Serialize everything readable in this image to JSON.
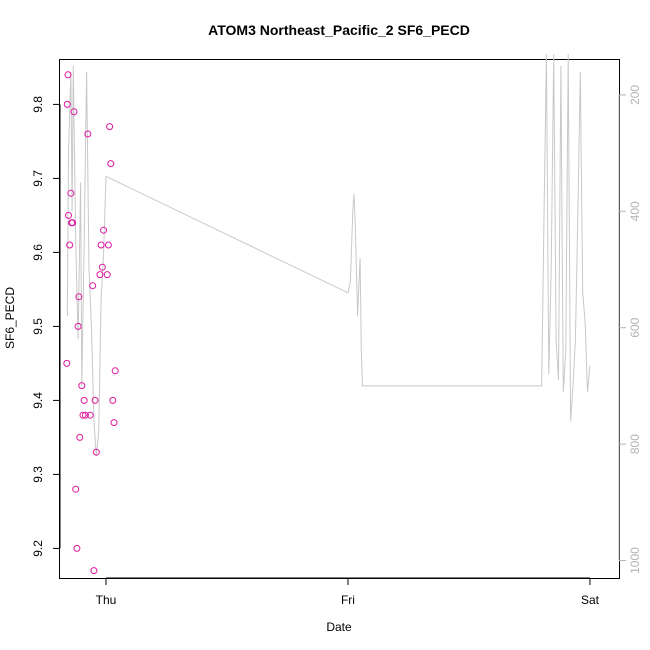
{
  "chart_data": {
    "type": "scatter",
    "title": "ATOM3 Northeast_Pacific_2 SF6_PECD",
    "xlabel": "Date",
    "ylabel": "SF6_PECD",
    "x_ticks": [
      "Thu",
      "Fri",
      "Sat"
    ],
    "y_ticks": [
      9.2,
      9.3,
      9.4,
      9.5,
      9.6,
      9.7,
      9.8
    ],
    "ylim": [
      9.16,
      9.86
    ],
    "y2_ticks": [
      200,
      400,
      600,
      800,
      1000
    ],
    "y2lim": [
      1030,
      140
    ],
    "x_axis_note": "x values are in days after Thu 00:00",
    "xlim": [
      -0.19,
      2.12
    ],
    "grid": false,
    "colors": {
      "points": "#e0199e",
      "line": "#c8c8c8",
      "right_axis": "#b3b3b3"
    },
    "series": [
      {
        "kind": "points",
        "x": [
          -0.162,
          -0.16,
          -0.157,
          -0.155,
          -0.15,
          -0.145,
          -0.142,
          -0.138,
          -0.132,
          -0.125,
          -0.12,
          -0.115,
          -0.112,
          -0.108,
          -0.1,
          -0.095,
          -0.09,
          -0.085,
          -0.075,
          -0.065,
          -0.055,
          -0.05,
          -0.045,
          -0.04,
          -0.025,
          -0.02,
          -0.015,
          -0.01,
          0.005,
          0.01,
          0.015,
          0.02,
          0.028,
          0.033,
          0.038
        ],
        "y": [
          9.45,
          9.8,
          9.84,
          9.65,
          9.61,
          9.68,
          9.64,
          9.64,
          9.79,
          9.28,
          9.2,
          9.5,
          9.54,
          9.35,
          9.42,
          9.38,
          9.4,
          9.38,
          9.76,
          9.38,
          9.555,
          9.17,
          9.4,
          9.33,
          9.57,
          9.61,
          9.58,
          9.63,
          9.57,
          9.61,
          9.77,
          9.72,
          9.4,
          9.37,
          9.44
        ]
      }
    ],
    "secondary_series": {
      "kind": "line",
      "x": [
        -0.16,
        -0.155,
        -0.145,
        -0.14,
        -0.135,
        -0.125,
        -0.115,
        -0.105,
        -0.1,
        -0.09,
        -0.08,
        -0.07,
        -0.06,
        -0.05,
        -0.04,
        -0.03,
        -0.02,
        -0.01,
        0.0,
        1.0,
        1.01,
        1.02,
        1.025,
        1.03,
        1.04,
        1.05,
        1.055,
        1.06,
        1.8,
        1.805,
        1.81,
        1.82,
        1.83,
        1.84,
        1.85,
        1.86,
        1.87,
        1.88,
        1.89,
        1.9,
        1.91,
        1.92,
        1.93,
        1.94,
        1.95,
        1.96,
        1.97,
        1.98,
        1.99,
        2.0
      ],
      "y2": [
        580,
        300,
        160,
        400,
        150,
        450,
        620,
        350,
        700,
        450,
        160,
        500,
        600,
        760,
        820,
        780,
        550,
        470,
        340,
        540,
        520,
        400,
        370,
        420,
        580,
        480,
        640,
        700,
        700,
        560,
        410,
        130,
        680,
        500,
        130,
        620,
        690,
        150,
        710,
        640,
        130,
        760,
        700,
        620,
        400,
        160,
        540,
        590,
        710,
        665
      ]
    },
    "y2_note": "the secondary grey line is plotted against the right-hand axis, which increases downwards from 200 at the top to 1000 at the bottom"
  }
}
